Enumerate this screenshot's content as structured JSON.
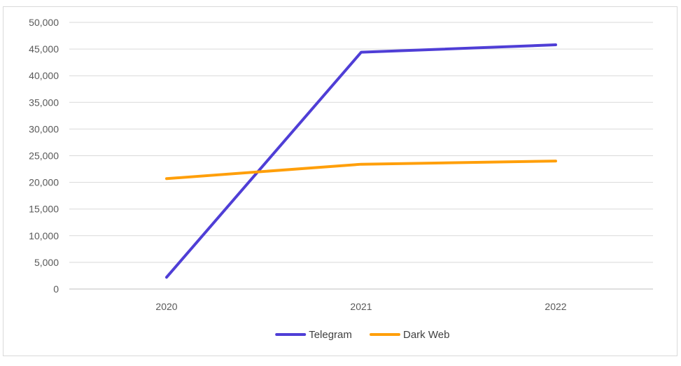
{
  "chart_data": {
    "type": "line",
    "title": "",
    "xlabel": "",
    "ylabel": "",
    "categories": [
      "2020",
      "2021",
      "2022"
    ],
    "series": [
      {
        "name": "Telegram",
        "values": [
          2200,
          44400,
          45800
        ],
        "color": "#4f3ed6"
      },
      {
        "name": "Dark Web",
        "values": [
          20700,
          23400,
          24000
        ],
        "color": "#ff9f0a"
      }
    ],
    "ylim": [
      0,
      50000
    ],
    "yticks": [
      0,
      5000,
      10000,
      15000,
      20000,
      25000,
      30000,
      35000,
      40000,
      45000,
      50000
    ],
    "ytick_labels": [
      "0",
      "5,000",
      "10,000",
      "15,000",
      "20,000",
      "25,000",
      "30,000",
      "35,000",
      "40,000",
      "45,000",
      "50,000"
    ],
    "grid": true,
    "legend_position": "bottom"
  }
}
